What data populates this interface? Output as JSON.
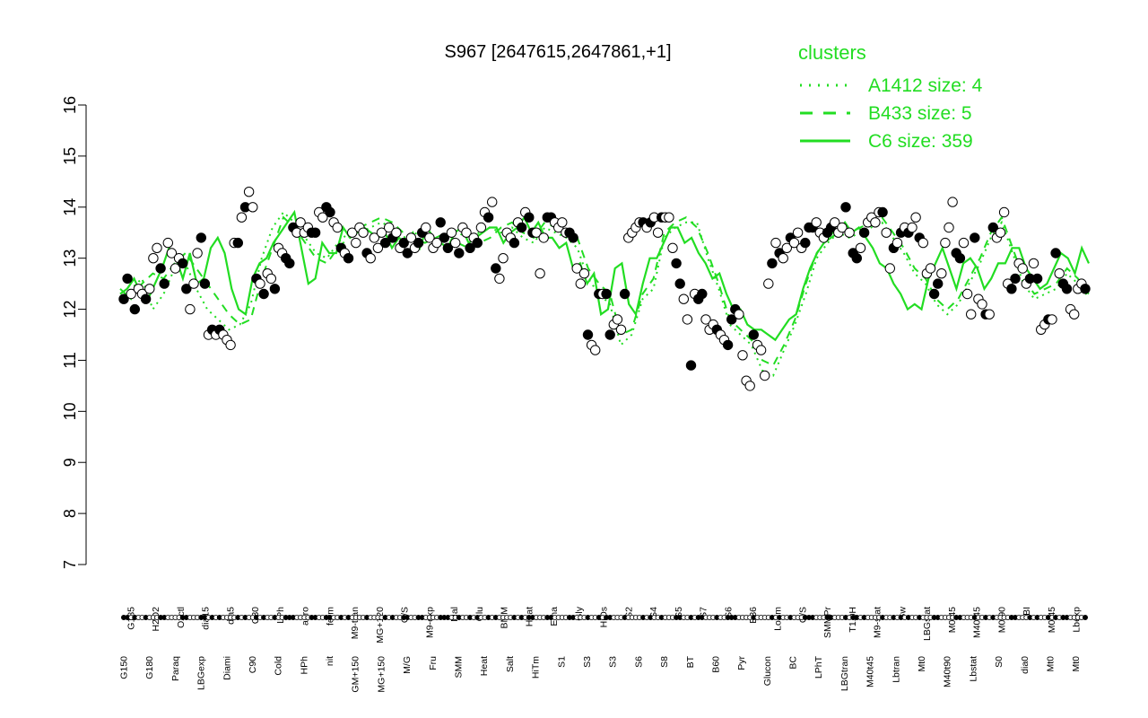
{
  "chart_data": {
    "type": "line",
    "title": "S967 [2647615,2647861,+1]",
    "xlabel": "",
    "ylabel": "",
    "ylim": [
      7,
      16
    ],
    "yticks": [
      7,
      8,
      9,
      10,
      11,
      12,
      13,
      14,
      15,
      16
    ],
    "grid": false,
    "legend_placement": "top-right",
    "legend": {
      "title": "clusters",
      "entries": [
        {
          "label": "A1412 size: 4",
          "style": "dotted",
          "color": "#22dd22"
        },
        {
          "label": "B433 size: 5",
          "style": "dashed",
          "color": "#22dd22"
        },
        {
          "label": "C6 size: 359",
          "style": "solid",
          "color": "#22dd22"
        }
      ]
    },
    "x_tick_labels_upper": [
      "G135",
      "H2O2",
      "Oxctl",
      "dia15",
      "dia5",
      "C30",
      "LPh",
      "aero",
      "ferm",
      "M9-tran",
      "MG+120",
      "G/S",
      "M9-exp",
      "Mal",
      "Glu",
      "BMM",
      "Heat",
      "Etha",
      "Gly",
      "HiOs",
      "S2",
      "S4",
      "S5",
      "S7",
      "S6",
      "B36",
      "LoTm",
      "G/S",
      "SMMPr",
      "T1.0H",
      "M9-stat",
      "Sw",
      "LBGstat",
      "M0t45",
      "M40t45",
      "M0t90",
      "BI",
      "M0t45",
      "Lbexp"
    ],
    "x_tick_labels_lower": [
      "G150",
      "G180",
      "Paraq",
      "LBGexp",
      "Diami",
      "C90",
      "Cold",
      "HPh",
      "nit",
      "GM+150",
      "MG+150",
      "M/G",
      "Fru",
      "SMM",
      "Heat",
      "Salt",
      "HiTm",
      "S1",
      "S3",
      "S3",
      "S6",
      "S8",
      "BT",
      "B60",
      "Pyr",
      "Glucon",
      "BC",
      "LPhT",
      "LBGtran",
      "M40t45",
      "Lbtran",
      "Mt0",
      "M40t90",
      "Lbstat",
      "S0",
      "dia0",
      "Mt0",
      "Mt0"
    ],
    "series": [
      {
        "style": "solid",
        "values": [
          12.3,
          12.4,
          12.6,
          12.3,
          12.2,
          12.5,
          12.8,
          13.2,
          13.0,
          12.6,
          13.1,
          12.5,
          12.6,
          13.2,
          13.4,
          13.1,
          12.4,
          12.0,
          11.9,
          12.6,
          12.9,
          13.0,
          13.3,
          13.5,
          13.7,
          13.9,
          13.2,
          12.5,
          12.6,
          13.3,
          13.1,
          13.1,
          13.6,
          13.4,
          13.5,
          13.6,
          13.5,
          13.4,
          13.5,
          13.2,
          13.4,
          13.3,
          13.5,
          13.2,
          13.6,
          13.4,
          13.3,
          13.2,
          13.5,
          13.6,
          13.3,
          13.4,
          13.5,
          13.6,
          13.6,
          13.3,
          13.5,
          13.6,
          13.8,
          13.5,
          13.7,
          13.4,
          13.4,
          13.2,
          13.3,
          12.8,
          12.9,
          12.5,
          12.7,
          11.9,
          12.0,
          12.8,
          12.9,
          12.1,
          11.9,
          12.5,
          13.0,
          13.0,
          13.3,
          13.6,
          13.6,
          13.3,
          13.4,
          13.1,
          12.9,
          12.6,
          12.7,
          12.3,
          12.0,
          12.0,
          11.7,
          11.6,
          11.6,
          11.5,
          11.4,
          11.6,
          11.8,
          11.9,
          12.4,
          12.8,
          13.1,
          13.3,
          13.4,
          13.5,
          13.7,
          13.5,
          13.6,
          13.4,
          13.2,
          12.9,
          12.8,
          12.5,
          12.3,
          12.0,
          12.1,
          12.0,
          12.6,
          12.9,
          13.2,
          12.8,
          12.4,
          12.9,
          13.0,
          12.8,
          12.4,
          12.6,
          12.9,
          12.9,
          13.2,
          13.2,
          12.8,
          12.6,
          12.4,
          12.5,
          12.8,
          13.1,
          13.0,
          12.7,
          13.2,
          12.9
        ]
      },
      {
        "style": "dashed",
        "values": [
          12.4,
          12.2,
          12.5,
          12.7,
          12.6,
          12.9,
          13.1,
          12.8,
          12.5,
          12.2,
          11.9,
          11.7,
          11.8,
          12.6,
          13.2,
          13.8,
          13.6,
          13.3,
          13.0,
          12.9,
          13.2,
          13.4,
          13.6,
          13.7,
          13.8,
          13.7,
          13.5,
          13.4,
          13.3,
          13.4,
          13.5,
          13.3,
          13.2,
          13.3,
          13.4,
          13.6,
          13.7,
          13.5,
          13.4,
          13.7,
          13.6,
          13.5,
          13.4,
          12.8,
          12.5,
          12.3,
          11.5,
          11.6,
          12.3,
          12.6,
          13.5,
          13.7,
          13.8,
          13.6,
          13.1,
          12.5,
          11.8,
          11.6,
          11.4,
          11.0,
          10.9,
          11.3,
          11.8,
          12.5,
          13.1,
          13.4,
          13.6,
          13.5,
          13.6,
          13.7,
          13.8,
          13.5,
          13.2,
          12.8,
          12.6,
          12.2,
          12.0,
          12.2,
          12.6,
          13.0,
          13.5,
          13.8,
          13.2,
          12.6,
          12.3,
          12.4,
          12.5,
          12.8,
          12.6,
          12.2
        ]
      },
      {
        "style": "dotted",
        "values": [
          12.2,
          12.4,
          12.6,
          12.0,
          12.3,
          12.8,
          12.9,
          12.4,
          12.0,
          11.8,
          11.6,
          11.7,
          12.1,
          13.0,
          13.6,
          13.9,
          13.7,
          13.4,
          13.1,
          13.0,
          13.3,
          13.5,
          13.5,
          13.6,
          13.7,
          13.6,
          13.4,
          13.5,
          13.4,
          13.3,
          13.4,
          13.5,
          13.4,
          13.5,
          13.6,
          13.5,
          13.6,
          13.4,
          13.3,
          13.6,
          13.5,
          13.4,
          13.2,
          12.6,
          12.3,
          12.1,
          11.3,
          11.5,
          12.2,
          12.4,
          13.4,
          13.6,
          13.7,
          13.7,
          13.0,
          12.4,
          11.7,
          11.5,
          11.3,
          10.8,
          10.7,
          11.2,
          11.7,
          12.3,
          13.0,
          13.3,
          13.5,
          13.4,
          13.5,
          13.6,
          13.7,
          13.4,
          13.1,
          12.7,
          12.5,
          12.1,
          11.9,
          12.1,
          12.5,
          12.9,
          13.4,
          13.7,
          13.1,
          12.5,
          12.2,
          12.3,
          12.4,
          12.7,
          12.5,
          12.3
        ]
      }
    ],
    "points": [
      12.2,
      12.6,
      12.3,
      12.0,
      12.4,
      12.3,
      12.2,
      12.4,
      13.0,
      13.2,
      12.8,
      12.5,
      13.3,
      13.1,
      12.8,
      13.0,
      12.9,
      12.4,
      12.0,
      12.5,
      13.1,
      13.4,
      12.5,
      11.5,
      11.6,
      11.5,
      11.6,
      11.5,
      11.4,
      11.3,
      13.3,
      13.3,
      13.8,
      14.0,
      14.3,
      14.0,
      12.6,
      12.5,
      12.3,
      12.7,
      12.6,
      12.4,
      13.2,
      13.1,
      13.0,
      12.9,
      13.6,
      13.5,
      13.7,
      13.5,
      13.6,
      13.5,
      13.5,
      13.9,
      13.8,
      14.0,
      13.9,
      13.7,
      13.6,
      13.2,
      13.1,
      13.0,
      13.5,
      13.3,
      13.6,
      13.5,
      13.1,
      13.0,
      13.4,
      13.2,
      13.5,
      13.3,
      13.6,
      13.4,
      13.5,
      13.2,
      13.3,
      13.1,
      13.4,
      13.2,
      13.3,
      13.5,
      13.6,
      13.4,
      13.2,
      13.3,
      13.7,
      13.4,
      13.2,
      13.5,
      13.3,
      13.1,
      13.6,
      13.5,
      13.2,
      13.4,
      13.3,
      13.6,
      13.9,
      13.8,
      14.1,
      12.8,
      12.6,
      13.0,
      13.5,
      13.4,
      13.3,
      13.7,
      13.6,
      13.9,
      13.8,
      13.5,
      13.5,
      12.7,
      13.4,
      13.8,
      13.8,
      13.7,
      13.6,
      13.7,
      13.5,
      13.5,
      13.4,
      12.8,
      12.5,
      12.7,
      11.5,
      11.3,
      11.2,
      12.3,
      12.3,
      12.3,
      11.5,
      11.7,
      11.8,
      11.6,
      12.3,
      13.4,
      13.5,
      13.6,
      13.7,
      13.7,
      13.6,
      13.7,
      13.8,
      13.5,
      13.8,
      13.8,
      13.8,
      13.2,
      12.9,
      12.5,
      12.2,
      11.8,
      10.9,
      12.3,
      12.2,
      12.3,
      11.8,
      11.6,
      11.7,
      11.6,
      11.5,
      11.4,
      11.3,
      11.8,
      12.0,
      11.9,
      11.1,
      10.6,
      10.5,
      11.5,
      11.3,
      11.2,
      10.7,
      12.5,
      12.9,
      13.3,
      13.1,
      13.0,
      13.2,
      13.4,
      13.3,
      13.5,
      13.2,
      13.3,
      13.6,
      13.6,
      13.7,
      13.5,
      13.4,
      13.5,
      13.6,
      13.7,
      13.5,
      13.6,
      14.0,
      13.5,
      13.1,
      13.0,
      13.2,
      13.5,
      13.7,
      13.8,
      13.7,
      13.9,
      13.9,
      13.5,
      12.8,
      13.2,
      13.3,
      13.5,
      13.6,
      13.5,
      13.6,
      13.8,
      13.4,
      13.3,
      12.7,
      12.8,
      12.3,
      12.5,
      12.7,
      13.3,
      13.6,
      14.1,
      13.1,
      13.0,
      13.3,
      12.3,
      11.9,
      13.4,
      12.2,
      12.1,
      11.9,
      11.9,
      13.6,
      13.4,
      13.5,
      13.9,
      12.5,
      12.4,
      12.6,
      12.9,
      12.8,
      12.5,
      12.6,
      12.9,
      12.6,
      11.6,
      11.7,
      11.8,
      11.8,
      13.1,
      12.7,
      12.5,
      12.4,
      12.0,
      11.9,
      12.4,
      12.5,
      12.4
    ]
  }
}
